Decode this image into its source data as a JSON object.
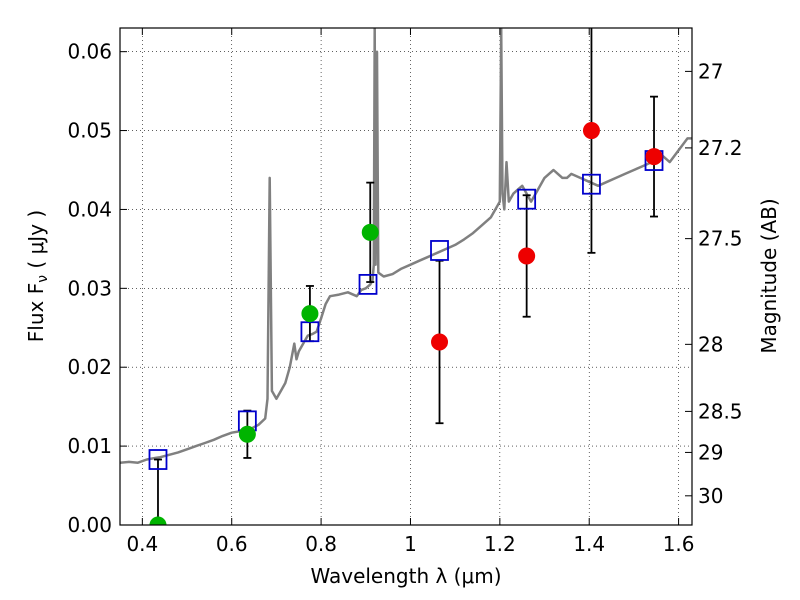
{
  "chart_data": {
    "type": "scatter",
    "xlabel": "Wavelength  λ (μm)",
    "ylabel": "Flux  F",
    "ylabel_sub": "ν",
    "ylabel_unit": "  ( μJy )",
    "y2label": "Magnitude (AB)",
    "xlim": [
      0.35,
      1.63
    ],
    "ylim": [
      0.0,
      0.063
    ],
    "grid": true,
    "x_ticks": [
      0.4,
      0.6,
      0.8,
      1.0,
      1.2,
      1.4,
      1.6
    ],
    "x_tick_labels": [
      "0.4",
      "0.6",
      "0.8",
      "1",
      "1.2",
      "1.4",
      "1.6"
    ],
    "y_ticks": [
      0.0,
      0.01,
      0.02,
      0.03,
      0.04,
      0.05,
      0.06
    ],
    "y_tick_labels": [
      "0.00",
      "0.01",
      "0.02",
      "0.03",
      "0.04",
      "0.05",
      "0.06"
    ],
    "mag_ticks": [
      {
        "label": "27",
        "flux": 0.0575
      },
      {
        "label": "27.2",
        "flux": 0.0478
      },
      {
        "label": "27.5",
        "flux": 0.0363
      },
      {
        "label": "28",
        "flux": 0.0229
      },
      {
        "label": "28.5",
        "flux": 0.0144
      },
      {
        "label": "29",
        "flux": 0.0092
      },
      {
        "label": "30",
        "flux": 0.0037
      }
    ],
    "model_spectrum": {
      "color": "#808080",
      "points": [
        [
          0.35,
          0.0079
        ],
        [
          0.37,
          0.008
        ],
        [
          0.39,
          0.0079
        ],
        [
          0.41,
          0.0083
        ],
        [
          0.43,
          0.0085
        ],
        [
          0.44,
          0.0086
        ],
        [
          0.46,
          0.0089
        ],
        [
          0.48,
          0.0092
        ],
        [
          0.5,
          0.0096
        ],
        [
          0.52,
          0.01
        ],
        [
          0.54,
          0.0104
        ],
        [
          0.56,
          0.0108
        ],
        [
          0.58,
          0.0113
        ],
        [
          0.6,
          0.0117
        ],
        [
          0.62,
          0.0119
        ],
        [
          0.64,
          0.0121
        ],
        [
          0.66,
          0.0127
        ],
        [
          0.675,
          0.0135
        ],
        [
          0.68,
          0.016
        ],
        [
          0.685,
          0.044
        ],
        [
          0.69,
          0.017
        ],
        [
          0.7,
          0.016
        ],
        [
          0.71,
          0.017
        ],
        [
          0.72,
          0.018
        ],
        [
          0.73,
          0.02
        ],
        [
          0.74,
          0.023
        ],
        [
          0.745,
          0.021
        ],
        [
          0.75,
          0.022
        ],
        [
          0.76,
          0.023
        ],
        [
          0.77,
          0.024
        ],
        [
          0.78,
          0.0242
        ],
        [
          0.79,
          0.0245
        ],
        [
          0.8,
          0.0262
        ],
        [
          0.81,
          0.028
        ],
        [
          0.82,
          0.029
        ],
        [
          0.84,
          0.0292
        ],
        [
          0.86,
          0.0295
        ],
        [
          0.88,
          0.029
        ],
        [
          0.89,
          0.0298
        ],
        [
          0.9,
          0.03
        ],
        [
          0.91,
          0.0305
        ],
        [
          0.915,
          0.031
        ],
        [
          0.918,
          0.033
        ],
        [
          0.92,
          0.063
        ],
        [
          0.922,
          0.033
        ],
        [
          0.925,
          0.06
        ],
        [
          0.928,
          0.032
        ],
        [
          0.94,
          0.0315
        ],
        [
          0.96,
          0.0318
        ],
        [
          0.98,
          0.0325
        ],
        [
          1.0,
          0.033
        ],
        [
          1.02,
          0.0335
        ],
        [
          1.04,
          0.034
        ],
        [
          1.06,
          0.0345
        ],
        [
          1.08,
          0.035
        ],
        [
          1.1,
          0.0355
        ],
        [
          1.12,
          0.0362
        ],
        [
          1.14,
          0.037
        ],
        [
          1.16,
          0.038
        ],
        [
          1.18,
          0.039
        ],
        [
          1.19,
          0.04
        ],
        [
          1.2,
          0.041
        ],
        [
          1.203,
          0.063
        ],
        [
          1.206,
          0.042
        ],
        [
          1.21,
          0.04
        ],
        [
          1.215,
          0.046
        ],
        [
          1.22,
          0.041
        ],
        [
          1.23,
          0.042
        ],
        [
          1.24,
          0.0425
        ],
        [
          1.25,
          0.043
        ],
        [
          1.26,
          0.042
        ],
        [
          1.27,
          0.041
        ],
        [
          1.28,
          0.042
        ],
        [
          1.29,
          0.043
        ],
        [
          1.3,
          0.044
        ],
        [
          1.31,
          0.0445
        ],
        [
          1.32,
          0.045
        ],
        [
          1.33,
          0.0445
        ],
        [
          1.34,
          0.044
        ],
        [
          1.35,
          0.044
        ],
        [
          1.36,
          0.0445
        ],
        [
          1.38,
          0.044
        ],
        [
          1.4,
          0.0435
        ],
        [
          1.42,
          0.043
        ],
        [
          1.44,
          0.0435
        ],
        [
          1.46,
          0.044
        ],
        [
          1.48,
          0.0445
        ],
        [
          1.5,
          0.045
        ],
        [
          1.52,
          0.0455
        ],
        [
          1.54,
          0.046
        ],
        [
          1.56,
          0.047
        ],
        [
          1.58,
          0.046
        ],
        [
          1.6,
          0.0475
        ],
        [
          1.62,
          0.049
        ],
        [
          1.63,
          0.049
        ]
      ]
    },
    "model_photometry": {
      "marker": "open-square",
      "color": "#0000cc",
      "points": [
        [
          0.435,
          0.0083
        ],
        [
          0.635,
          0.0132
        ],
        [
          0.775,
          0.0245
        ],
        [
          0.905,
          0.0305
        ],
        [
          1.065,
          0.0348
        ],
        [
          1.26,
          0.0413
        ],
        [
          1.405,
          0.0432
        ],
        [
          1.545,
          0.0462
        ]
      ]
    },
    "observed_detections": {
      "marker": "filled-circle",
      "color": "#00b400",
      "points": [
        {
          "x": 0.435,
          "y": 0.0,
          "err_low": 0.0,
          "err_high": 0.0083
        },
        {
          "x": 0.635,
          "y": 0.0115,
          "err_low": 0.003,
          "err_high": 0.003
        },
        {
          "x": 0.775,
          "y": 0.0268,
          "err_low": 0.0035,
          "err_high": 0.0035
        },
        {
          "x": 0.91,
          "y": 0.0371,
          "err_low": 0.0063,
          "err_high": 0.0063
        }
      ]
    },
    "observed_red": {
      "marker": "filled-circle",
      "color": "#ee0000",
      "points": [
        {
          "x": 1.065,
          "y": 0.0232,
          "err_low": 0.0103,
          "err_high": 0.0103
        },
        {
          "x": 1.26,
          "y": 0.0341,
          "err_low": 0.0077,
          "err_high": 0.0077
        },
        {
          "x": 1.405,
          "y": 0.05,
          "err_low": 0.0155,
          "err_high": 0.0155
        },
        {
          "x": 1.545,
          "y": 0.0467,
          "err_low": 0.0076,
          "err_high": 0.0076
        }
      ]
    }
  }
}
